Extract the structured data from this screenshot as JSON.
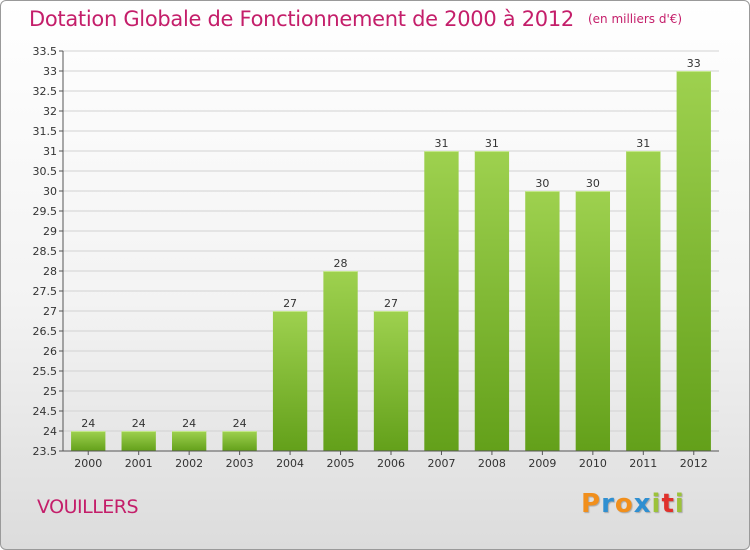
{
  "chart_data": {
    "type": "bar",
    "title": "Dotation Globale de Fonctionnement de 2000 à 2012",
    "unit_note": "(en milliers d'€)",
    "categories": [
      "2000",
      "2001",
      "2002",
      "2003",
      "2004",
      "2005",
      "2006",
      "2007",
      "2008",
      "2009",
      "2010",
      "2011",
      "2012"
    ],
    "values": [
      24,
      24,
      24,
      24,
      27,
      28,
      27,
      31,
      31,
      30,
      30,
      31,
      33
    ],
    "data_labels": [
      "24",
      "24",
      "24",
      "24",
      "27",
      "28",
      "27",
      "31",
      "31",
      "30",
      "30",
      "31",
      "33"
    ],
    "ylim": [
      23.5,
      33.5
    ],
    "yticks": [
      "23.5",
      "24",
      "24.5",
      "25",
      "25.5",
      "26",
      "26.5",
      "27",
      "27.5",
      "28",
      "28.5",
      "29",
      "29.5",
      "30",
      "30.5",
      "31",
      "31.5",
      "32",
      "32.5",
      "33",
      "33.5"
    ],
    "grid": true,
    "legend": "none",
    "bar_color_top": "#9ed14f",
    "bar_color_bottom": "#63a01a"
  },
  "footer": {
    "commune": "VOUILLERS",
    "brand_letters": [
      "P",
      "r",
      "o",
      "x",
      "i",
      "t",
      "i"
    ],
    "brand_colors": [
      "#f18f1c",
      "#2f8fd1",
      "#f18f1c",
      "#2f8fd1",
      "#9cc23a",
      "#e0312c",
      "#9cc23a"
    ]
  }
}
